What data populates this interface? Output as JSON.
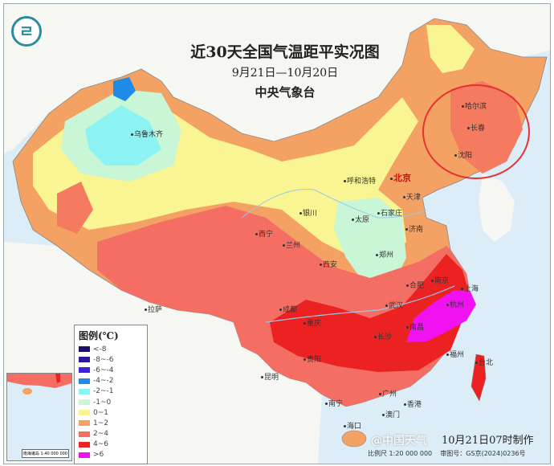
{
  "header": {
    "title": "近30天全国气温距平实况图",
    "date_range": "9月21日—10月20日",
    "agency": "中央气象台"
  },
  "logo": {
    "icon": "cma-logo",
    "glyph": "ㄹ"
  },
  "legend": {
    "title": "图例(℃)",
    "items": [
      {
        "label": "<-8",
        "color": "#1c0f6e"
      },
      {
        "label": "-8~-6",
        "color": "#2b1aa0"
      },
      {
        "label": "-6~-4",
        "color": "#3b22e0"
      },
      {
        "label": "-4~-2",
        "color": "#1f8ae8"
      },
      {
        "label": "-2~-1",
        "color": "#8cf2f2"
      },
      {
        "label": "-1~0",
        "color": "#c8f6d6"
      },
      {
        "label": "0~1",
        "color": "#f8f592"
      },
      {
        "label": "1~2",
        "color": "#f4a264"
      },
      {
        "label": "2~4",
        "color": "#f46e64"
      },
      {
        "label": "4~6",
        "color": "#ec2222"
      },
      {
        "label": ">6",
        "color": "#f012f0"
      }
    ]
  },
  "cities": {
    "urumqi": "乌鲁木齐",
    "harbin": "哈尔滨",
    "changchun": "长春",
    "shenyang": "沈阳",
    "hohhot": "呼和浩特",
    "beijing": "北京",
    "tianjin": "天津",
    "shijiazhuang": "石家庄",
    "taiyuan": "太原",
    "yinchuan": "银川",
    "xining": "西宁",
    "lanzhou": "兰州",
    "jinan": "济南",
    "zhengzhou": "郑州",
    "xian": "西安",
    "lhasa": "拉萨",
    "chengdu": "成都",
    "chongqing": "重庆",
    "wuhan": "武汉",
    "hefei": "合肥",
    "nanjing": "南京",
    "shanghai": "上海",
    "hangzhou": "杭州",
    "nanchang": "南昌",
    "changsha": "长沙",
    "guiyang": "贵阳",
    "kunming": "昆明",
    "nanning": "南宁",
    "guangzhou": "广州",
    "hongkong": "香港",
    "macau": "澳门",
    "haikou": "海口",
    "fuzhou": "福州",
    "taipei": "台北"
  },
  "highlight": {
    "region": "东北",
    "color": "#e83030"
  },
  "inset": {
    "scale": "南海诸岛 1:40 000 000"
  },
  "footer": {
    "made": "10月21日07时制作",
    "scale": "比例尺 1:20 000 000",
    "map_no": "审图号：GS京(2024)0236号",
    "watermark": "@中国天气"
  }
}
